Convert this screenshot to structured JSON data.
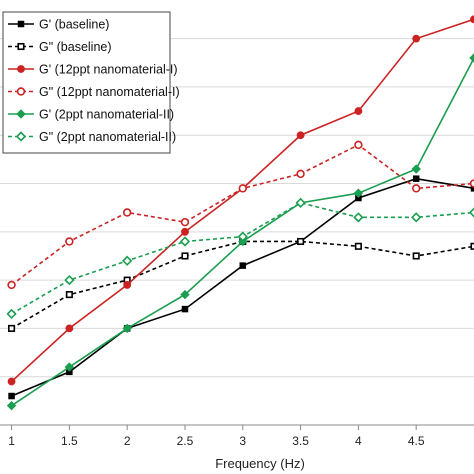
{
  "chart_data": {
    "type": "line",
    "xlabel": "Frequency (Hz)",
    "ylabel": "",
    "x": [
      1,
      1.5,
      2,
      2.5,
      3,
      3.5,
      4,
      4.5,
      5
    ],
    "x_ticks": [
      "1",
      "1.5",
      "2",
      "2.5",
      "3",
      "3.5",
      "4",
      "4.5"
    ],
    "xlim": [
      0.9,
      5
    ],
    "ylim": [
      0,
      8.8
    ],
    "grid": "horizontal",
    "legend_position": "top-left",
    "series": [
      {
        "name": "G' (baseline)",
        "color": "#000000",
        "dash": "solid",
        "marker": "square-filled",
        "values": [
          0.6,
          1.1,
          2.0,
          2.4,
          3.3,
          3.8,
          4.7,
          5.1,
          4.9
        ]
      },
      {
        "name": "G\" (baseline)",
        "color": "#000000",
        "dash": "dashed",
        "marker": "square-open",
        "values": [
          2.0,
          2.7,
          3.0,
          3.5,
          3.8,
          3.8,
          3.7,
          3.5,
          3.7
        ]
      },
      {
        "name": "G' (12ppt nanomaterial-I)",
        "color": "#cc2222",
        "dash": "solid",
        "marker": "circle-filled",
        "values": [
          0.9,
          2.0,
          2.9,
          4.0,
          4.9,
          6.0,
          6.5,
          8.0,
          8.4
        ]
      },
      {
        "name": "G\" (12ppt nanomaterial-I)",
        "color": "#cc2222",
        "dash": "dashed",
        "marker": "circle-open",
        "values": [
          2.9,
          3.8,
          4.4,
          4.2,
          4.9,
          5.2,
          5.8,
          4.9,
          5.0
        ]
      },
      {
        "name": "G' (2ppt nanomaterial-II)",
        "color": "#1a9e50",
        "dash": "solid",
        "marker": "diamond-filled",
        "values": [
          0.4,
          1.2,
          2.0,
          2.7,
          3.8,
          4.6,
          4.8,
          5.3,
          7.6
        ]
      },
      {
        "name": "G\" (2ppt nanomaterial-II)",
        "color": "#1a9e50",
        "dash": "dashed",
        "marker": "diamond-open",
        "values": [
          2.3,
          3.0,
          3.4,
          3.8,
          3.9,
          4.6,
          4.3,
          4.3,
          4.4
        ]
      }
    ]
  }
}
